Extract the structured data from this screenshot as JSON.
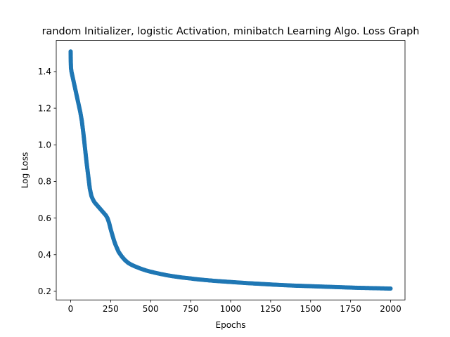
{
  "chart_data": {
    "type": "line",
    "title": "random Initializer, logistic Activation, minibatch Learning Algo. Loss Graph",
    "xlabel": "Epochs",
    "ylabel": "Log Loss",
    "xlim": [
      -90,
      2090
    ],
    "ylim": [
      0.153,
      1.57
    ],
    "xticks": [
      0,
      250,
      500,
      750,
      1000,
      1250,
      1500,
      1750,
      2000
    ],
    "yticks": [
      0.2,
      0.4,
      0.6,
      0.8,
      1.0,
      1.2,
      1.4
    ],
    "xtick_labels": [
      "0",
      "250",
      "500",
      "750",
      "1000",
      "1250",
      "1500",
      "1750",
      "2000"
    ],
    "ytick_labels": [
      "0.2",
      "0.4",
      "0.6",
      "0.8",
      "1.0",
      "1.2",
      "1.4"
    ],
    "grid": false,
    "marker": "circle",
    "series": [
      {
        "color": "#1f77b4",
        "x": [
          0,
          1,
          2,
          5,
          10,
          20,
          30,
          40,
          50,
          60,
          70,
          80,
          90,
          100,
          110,
          120,
          130,
          140,
          150,
          160,
          170,
          180,
          190,
          200,
          210,
          220,
          230,
          240,
          250,
          260,
          270,
          280,
          290,
          300,
          320,
          340,
          360,
          380,
          400,
          425,
          450,
          475,
          500,
          550,
          600,
          650,
          700,
          750,
          800,
          850,
          900,
          950,
          1000,
          1100,
          1200,
          1300,
          1400,
          1500,
          1600,
          1700,
          1800,
          1900,
          2000
        ],
        "y": [
          1.51,
          1.45,
          1.42,
          1.4,
          1.38,
          1.34,
          1.3,
          1.26,
          1.22,
          1.18,
          1.13,
          1.06,
          0.98,
          0.9,
          0.83,
          0.76,
          0.72,
          0.7,
          0.685,
          0.675,
          0.665,
          0.655,
          0.645,
          0.635,
          0.625,
          0.615,
          0.6,
          0.575,
          0.54,
          0.51,
          0.48,
          0.455,
          0.435,
          0.415,
          0.39,
          0.37,
          0.355,
          0.345,
          0.337,
          0.328,
          0.32,
          0.313,
          0.307,
          0.297,
          0.288,
          0.281,
          0.275,
          0.27,
          0.265,
          0.261,
          0.257,
          0.254,
          0.251,
          0.245,
          0.24,
          0.235,
          0.231,
          0.228,
          0.225,
          0.222,
          0.219,
          0.217,
          0.215
        ]
      }
    ]
  }
}
